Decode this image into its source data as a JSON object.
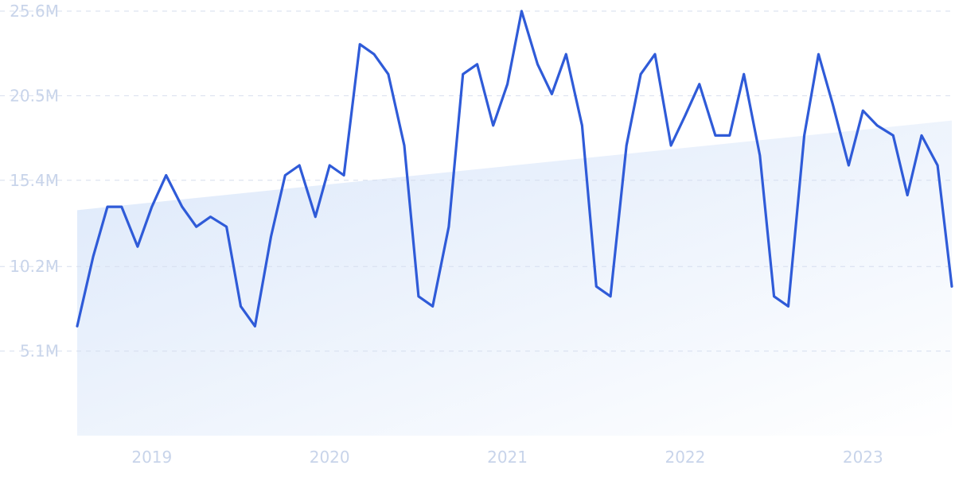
{
  "colors": {
    "line": "#2f5bd8",
    "trend_fill_start": "#dce8fa",
    "trend_fill_end": "#ffffff",
    "tick_label": "#c8d4ea",
    "grid": "#d6deee"
  },
  "chart_data": {
    "type": "line",
    "title": "",
    "xlabel": "",
    "ylabel": "",
    "x_tick_labels": [
      "2019",
      "2020",
      "2021",
      "2022",
      "2023"
    ],
    "x_ticks": [
      2019,
      2020,
      2021,
      2022,
      2023
    ],
    "y_tick_labels": [
      "5.1M",
      "10.2M",
      "15.4M",
      "20.5M",
      "25.6M"
    ],
    "y_ticks": [
      5100000,
      10200000,
      15400000,
      20500000,
      25600000
    ],
    "xlim": [
      2018.58,
      2023.5
    ],
    "ylim": [
      0,
      25600000
    ],
    "grid": true,
    "legend": "none",
    "x": [
      2018.58,
      2018.67,
      2018.75,
      2018.83,
      2018.92,
      2019.0,
      2019.08,
      2019.17,
      2019.25,
      2019.33,
      2019.42,
      2019.5,
      2019.58,
      2019.67,
      2019.75,
      2019.83,
      2019.92,
      2020.0,
      2020.08,
      2020.17,
      2020.25,
      2020.33,
      2020.42,
      2020.5,
      2020.58,
      2020.67,
      2020.75,
      2020.83,
      2020.92,
      2021.0,
      2021.08,
      2021.17,
      2021.25,
      2021.33,
      2021.42,
      2021.5,
      2021.58,
      2021.67,
      2021.75,
      2021.83,
      2021.92,
      2022.0,
      2022.08,
      2022.17,
      2022.25,
      2022.33,
      2022.42,
      2022.5,
      2022.58,
      2022.67,
      2022.75,
      2022.83,
      2022.92,
      2023.0,
      2023.08,
      2023.17,
      2023.25,
      2023.33,
      2023.42,
      2023.5
    ],
    "series": [
      {
        "values": [
          6600000,
          10800000,
          13800000,
          13800000,
          11400000,
          13800000,
          15700000,
          13800000,
          12600000,
          13200000,
          12600000,
          7800000,
          6600000,
          12000000,
          15700000,
          16300000,
          13200000,
          16300000,
          15700000,
          23600000,
          23000000,
          21800000,
          17500000,
          8400000,
          7800000,
          12600000,
          21800000,
          22400000,
          18700000,
          21200000,
          25600000,
          22400000,
          20600000,
          23000000,
          18700000,
          9000000,
          8400000,
          17500000,
          21800000,
          23000000,
          17500000,
          19300000,
          21200000,
          18100000,
          18100000,
          21800000,
          16900000,
          8400000,
          7800000,
          18100000,
          23000000,
          20000000,
          16300000,
          19600000,
          18700000,
          18100000,
          14500000,
          18100000,
          16300000,
          9000000
        ]
      }
    ],
    "trend_area": {
      "x": [
        2018.58,
        2023.5
      ],
      "y": [
        13600000,
        19000000
      ]
    }
  }
}
